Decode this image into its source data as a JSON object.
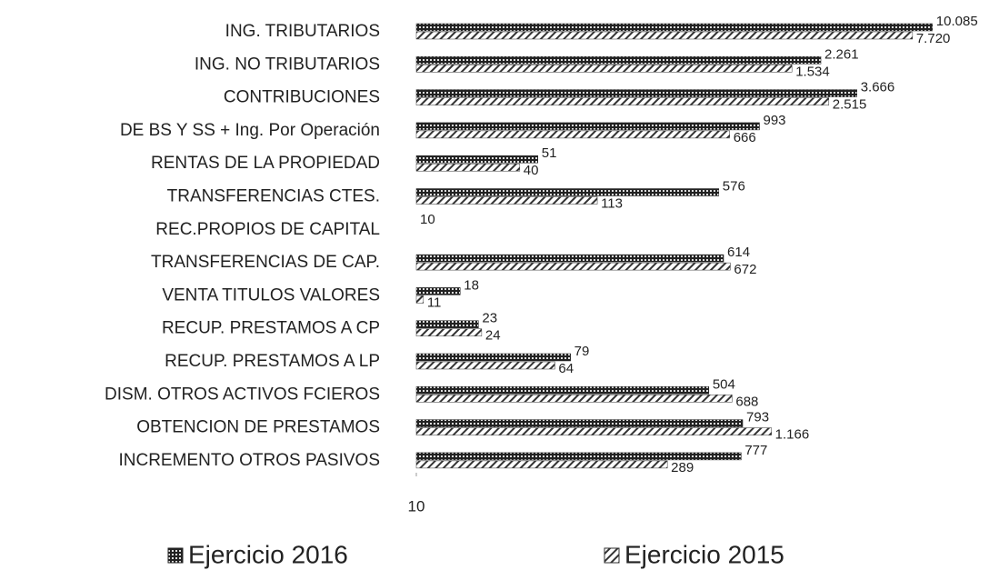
{
  "chart_data": {
    "type": "bar",
    "orientation": "horizontal",
    "log_scale": true,
    "categories": [
      "ING. TRIBUTARIOS",
      "ING. NO TRIBUTARIOS",
      "CONTRIBUCIONES",
      "DE BS Y SS + Ing. Por Operación",
      "RENTAS DE LA PROPIEDAD",
      "TRANSFERENCIAS CTES.",
      "REC.PROPIOS DE CAPITAL",
      "TRANSFERENCIAS DE CAP.",
      "VENTA TITULOS VALORES",
      "RECUP. PRESTAMOS A CP",
      "RECUP. PRESTAMOS A LP",
      "DISM. OTROS ACTIVOS FCIEROS",
      "OBTENCION DE PRESTAMOS",
      "INCREMENTO OTROS PASIVOS"
    ],
    "series": [
      {
        "name": "Ejercicio 2016",
        "color": "#222222",
        "values": [
          10085,
          2261,
          3666,
          993,
          51,
          576,
          10,
          614,
          18,
          23,
          79,
          504,
          793,
          777
        ],
        "value_labels": [
          "10.085",
          "2.261",
          "3.666",
          "993",
          "51",
          "576",
          "10",
          "614",
          "18",
          "23",
          "79",
          "504",
          "793",
          "777"
        ]
      },
      {
        "name": "Ejercicio 2015",
        "color": "#333333",
        "values": [
          7720,
          1534,
          2515,
          666,
          40,
          113,
          null,
          672,
          11,
          24,
          64,
          688,
          1166,
          289
        ],
        "value_labels": [
          "7.720",
          "1.534",
          "2.515",
          "666",
          "40",
          "113",
          null,
          "672",
          "11",
          "24",
          "64",
          "688",
          "1.166",
          "289"
        ]
      }
    ],
    "xlim": [
      10,
      20000
    ],
    "xticks": [
      10
    ],
    "legend": "bottom"
  }
}
